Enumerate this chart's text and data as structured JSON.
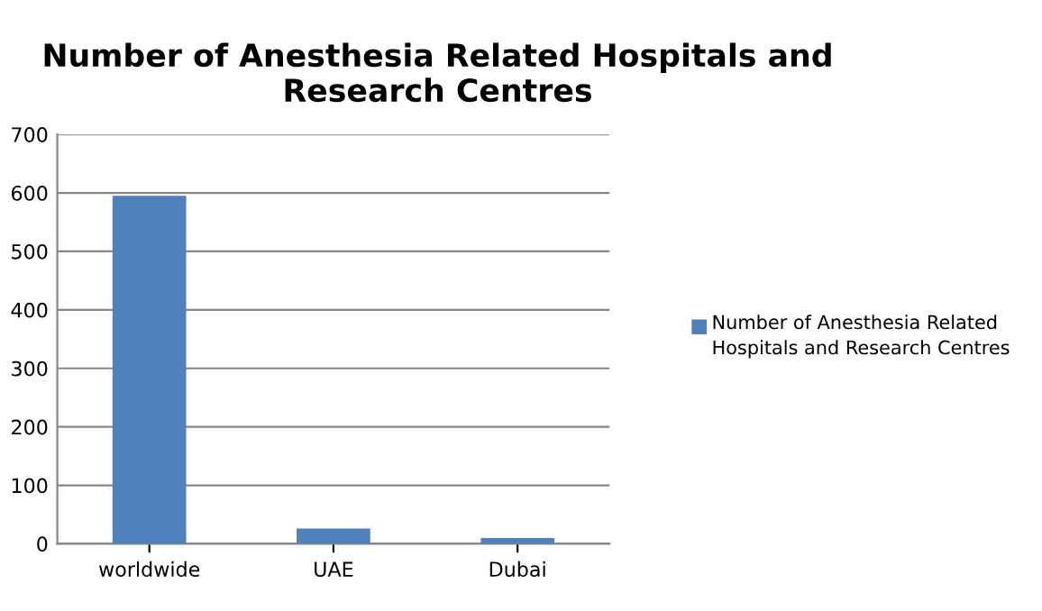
{
  "chart_data": {
    "type": "bar",
    "title": "Number of Anesthesia Related Hospitals and Research Centres",
    "categories": [
      "worldwide",
      "UAE",
      "Dubai"
    ],
    "series": [
      {
        "name": "Number of Anesthesia Related Hospitals and Research Centres",
        "color": "#4f81bd",
        "values": [
          595,
          26,
          10
        ]
      }
    ],
    "ylim": [
      0,
      700
    ],
    "yticks": [
      0,
      100,
      200,
      300,
      400,
      500,
      600,
      700
    ],
    "grid": "y",
    "legend": "right"
  }
}
